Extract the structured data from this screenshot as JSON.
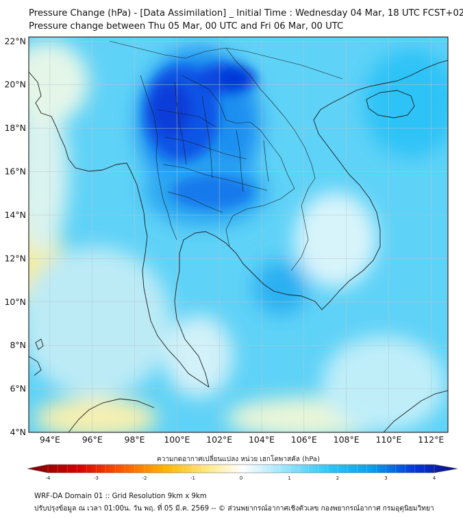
{
  "title": {
    "line1": "Pressure Change (hPa) - [Data Assimilation] _ Initial Time : Wednesday 04 Mar, 18 UTC FCST+024",
    "line2": "Pressure change between Thu 05 Mar, 00 UTC and Fri 06 Mar, 00 UTC"
  },
  "map": {
    "lat_labels": [
      "22°N",
      "20°N",
      "18°N",
      "16°N",
      "14°N",
      "12°N",
      "10°N",
      "8°N",
      "6°N",
      "4°N"
    ],
    "lon_labels": [
      "94°E",
      "96°E",
      "98°E",
      "100°E",
      "102°E",
      "104°E",
      "106°E",
      "108°E",
      "110°E",
      "112°E"
    ],
    "lat_range": [
      4,
      22.2
    ],
    "lon_range": [
      93.0,
      112.8
    ]
  },
  "colorbar": {
    "title": "ความกดอากาศเปลี่ยนแปลง หน่วย เฮกโตพาสคัล (hPa)",
    "tick_labels": [
      "-4",
      "-3",
      "-2",
      "-1",
      "0",
      "1",
      "2",
      "3",
      "4"
    ],
    "range": [
      -4,
      4
    ],
    "colors": {
      "neg_max": "#7a0000",
      "neg_mid": "#ff2a00",
      "neg_low": "#ffd23a",
      "zero": "#ffffff",
      "pos_low": "#9fe6ff",
      "pos_mid": "#0ab2f0",
      "pos_max": "#0a0a7a"
    }
  },
  "footer": {
    "line1": "WRF-DA Domain 01 :: Grid Resolution 9km x 9km",
    "line2": "ปรับปรุงข้อมูล ณ เวลา 01:00น. วัน พฤ. ที่ 05 มี.ค. 2569 -- © ส่วนพยากรณ์อากาศเชิงตัวเลข กองพยากรณ์อากาศ กรมอุตุนิยมวิทยา"
  }
}
